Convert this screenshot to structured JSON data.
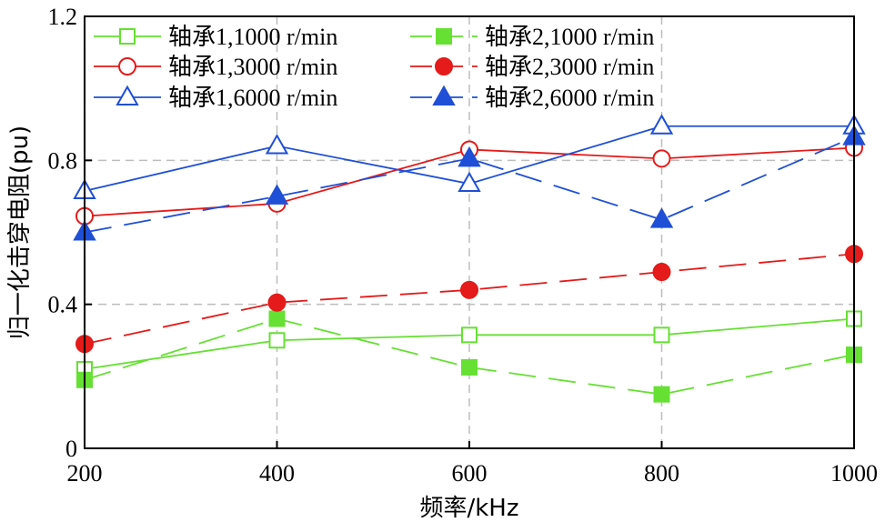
{
  "chart_data": {
    "type": "line",
    "xlabel": "频率/kHz",
    "ylabel": "归一化击穿电阻(pu)",
    "xlim": [
      200,
      1000
    ],
    "ylim": [
      0,
      1.2
    ],
    "x_ticks": [
      "200",
      "400",
      "600",
      "800",
      "1000"
    ],
    "y_ticks": [
      "0",
      "0.4",
      "0.8",
      "1.2"
    ],
    "grid": true,
    "legend_position": "top",
    "x": [
      200,
      400,
      600,
      800,
      1000
    ],
    "series": [
      {
        "name": "轴承1,1000 r/min",
        "values": [
          0.22,
          0.3,
          0.315,
          0.315,
          0.36
        ],
        "color": "#66e033",
        "marker": "square",
        "filled": false,
        "dashed": false
      },
      {
        "name": "轴承2,1000 r/min",
        "values": [
          0.19,
          0.36,
          0.225,
          0.15,
          0.26
        ],
        "color": "#66e033",
        "marker": "square",
        "filled": true,
        "dashed": true
      },
      {
        "name": "轴承1,3000 r/min",
        "values": [
          0.645,
          0.68,
          0.83,
          0.805,
          0.835
        ],
        "color": "#e51a1a",
        "marker": "circle",
        "filled": false,
        "dashed": false
      },
      {
        "name": "轴承2,3000 r/min",
        "values": [
          0.29,
          0.405,
          0.44,
          0.49,
          0.54
        ],
        "color": "#e51a1a",
        "marker": "circle",
        "filled": true,
        "dashed": true
      },
      {
        "name": "轴承1,6000 r/min",
        "values": [
          0.715,
          0.84,
          0.735,
          0.895,
          0.895
        ],
        "color": "#1f4fd6",
        "marker": "triangle",
        "filled": false,
        "dashed": false
      },
      {
        "name": "轴承2,6000 r/min",
        "values": [
          0.6,
          0.7,
          0.805,
          0.635,
          0.865
        ],
        "color": "#1f4fd6",
        "marker": "triangle",
        "filled": true,
        "dashed": true
      }
    ]
  }
}
